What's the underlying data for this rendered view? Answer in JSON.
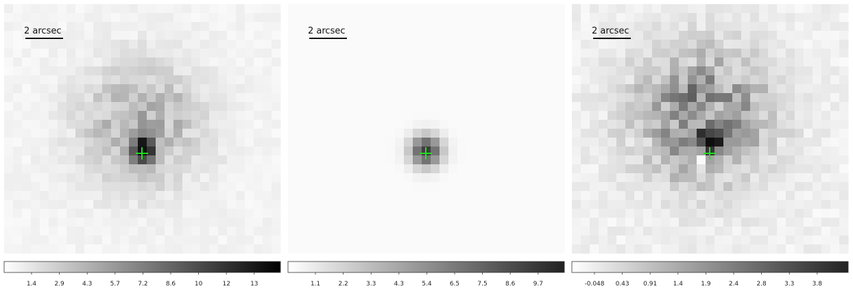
{
  "panels": [
    {
      "scale_label": "2 arcsec",
      "colorbar_ticks": [
        "1.4",
        "2.9",
        "4.3",
        "5.7",
        "7.2",
        "8.6",
        "10",
        "12",
        "13"
      ]
    },
    {
      "scale_label": "2 arcsec",
      "colorbar_ticks": [
        "1.1",
        "2.2",
        "3.3",
        "4.3",
        "5.4",
        "6.5",
        "7.5",
        "8.6",
        "9.7"
      ]
    },
    {
      "scale_label": "2 arcsec",
      "colorbar_ticks": [
        "-0.048",
        "0.43",
        "0.91",
        "1.4",
        "1.9",
        "2.4",
        "2.8",
        "3.3",
        "3.8"
      ]
    }
  ]
}
